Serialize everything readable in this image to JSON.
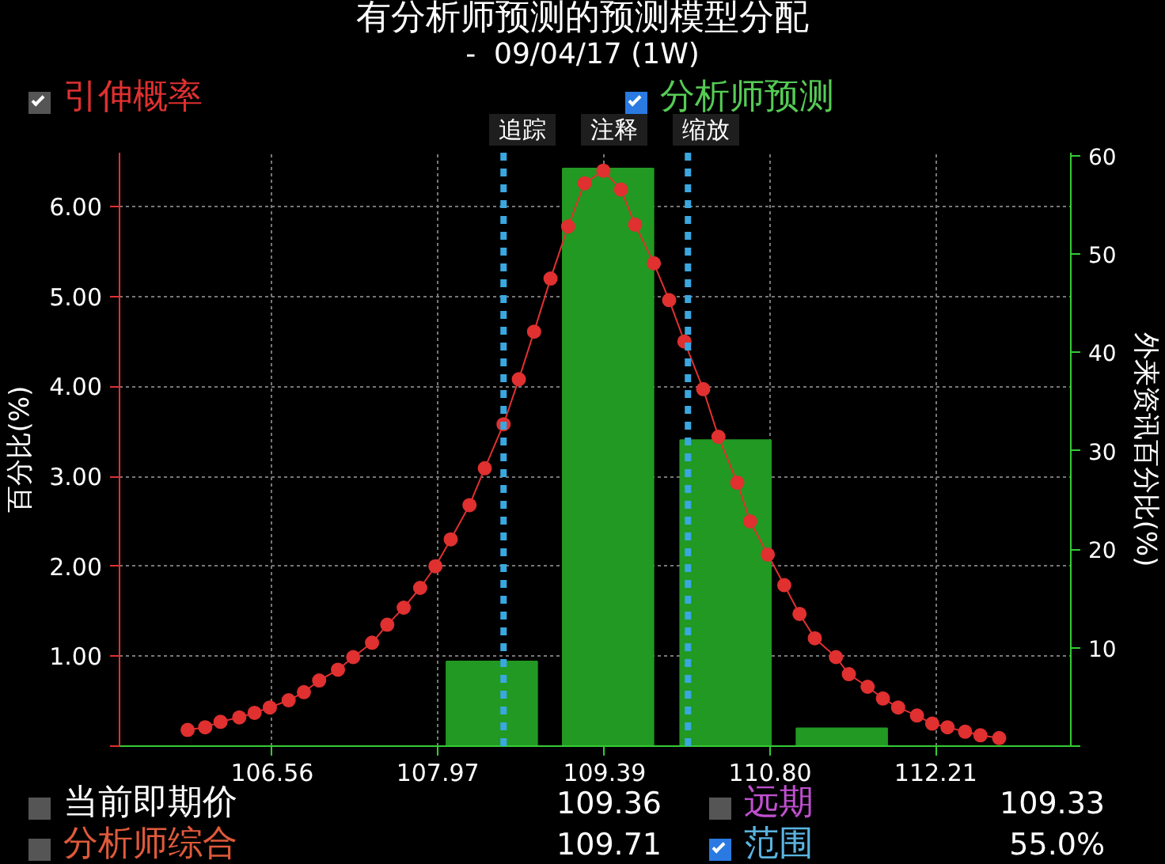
{
  "chart_data": {
    "type": "line",
    "title": "有分析师预测的预测模型分配",
    "subtitle": "-  09/04/17 (1W)",
    "ylabel": "百分比(%)",
    "y2label": "外来资讯百分比(%)",
    "xlim": [
      105.26,
      113.36
    ],
    "xticks": [
      106.56,
      107.97,
      109.39,
      {
        "value": 110.8,
        "label": "110.80"
      },
      112.21
    ],
    "ylim": [
      0,
      6.6
    ],
    "yticks": [
      {
        "value": 0,
        "label": null
      },
      {
        "value": 1,
        "label": "1.00"
      },
      {
        "value": 2,
        "label": "2.00"
      },
      {
        "value": 3,
        "label": "3.00"
      },
      {
        "value": 4,
        "label": "4.00"
      },
      {
        "value": 5,
        "label": "5.00"
      },
      {
        "value": 6,
        "label": "6.00"
      }
    ],
    "y2lim": [
      0,
      60.3
    ],
    "y2ticks": [
      {
        "value": 0,
        "label": null
      },
      10,
      20,
      30,
      40,
      50,
      60
    ],
    "series": [
      {
        "name": "引伸概率",
        "color": "#e03030",
        "x": [
          105.84,
          105.99,
          106.12,
          106.28,
          106.41,
          106.54,
          106.7,
          106.83,
          106.96,
          107.12,
          107.25,
          107.41,
          107.54,
          107.68,
          107.82,
          107.95,
          108.08,
          108.24,
          108.37,
          108.53,
          108.66,
          108.79,
          108.93,
          109.08,
          109.22,
          109.38,
          109.53,
          109.65,
          109.81,
          109.94,
          110.07,
          110.23,
          110.36,
          110.52,
          110.63,
          110.78,
          110.92,
          111.05,
          111.18,
          111.36,
          111.47,
          111.63,
          111.76,
          111.89,
          112.05,
          112.18,
          112.31,
          112.46,
          112.59,
          112.75
        ],
        "values": [
          0.18,
          0.21,
          0.27,
          0.32,
          0.37,
          0.43,
          0.51,
          0.6,
          0.73,
          0.85,
          0.99,
          1.15,
          1.35,
          1.54,
          1.76,
          2.0,
          2.3,
          2.68,
          3.09,
          3.58,
          4.08,
          4.61,
          5.2,
          5.78,
          6.26,
          6.4,
          6.19,
          5.8,
          5.37,
          4.96,
          4.5,
          3.97,
          3.44,
          2.93,
          2.5,
          2.13,
          1.79,
          1.47,
          1.2,
          0.99,
          0.8,
          0.66,
          0.53,
          0.43,
          0.34,
          0.25,
          0.21,
          0.16,
          0.12,
          0.09
        ]
      },
      {
        "name": "分析师预测",
        "type": "bar",
        "axis": "y2",
        "color": "#229922",
        "x": [
          108.43,
          109.42,
          110.42,
          111.41
        ],
        "values": [
          8.6,
          58.7,
          31.1,
          1.8
        ]
      }
    ],
    "ref_lines": [
      {
        "axis": "x",
        "value": 108.53,
        "color": "#3aa8e0",
        "line_style": "dotted"
      },
      {
        "axis": "x",
        "value": 110.1,
        "color": "#3aa8e0",
        "line_style": "dotted"
      }
    ],
    "annotations": [
      "追踪",
      "注释",
      "缩放",
      "当前即期价",
      "109.36",
      "远期",
      "109.33",
      "分析师综合",
      "109.71",
      "范围",
      "55.0%"
    ],
    "grid": true,
    "legend": "top",
    "marker": "circle",
    "line_style": "solid"
  }
}
